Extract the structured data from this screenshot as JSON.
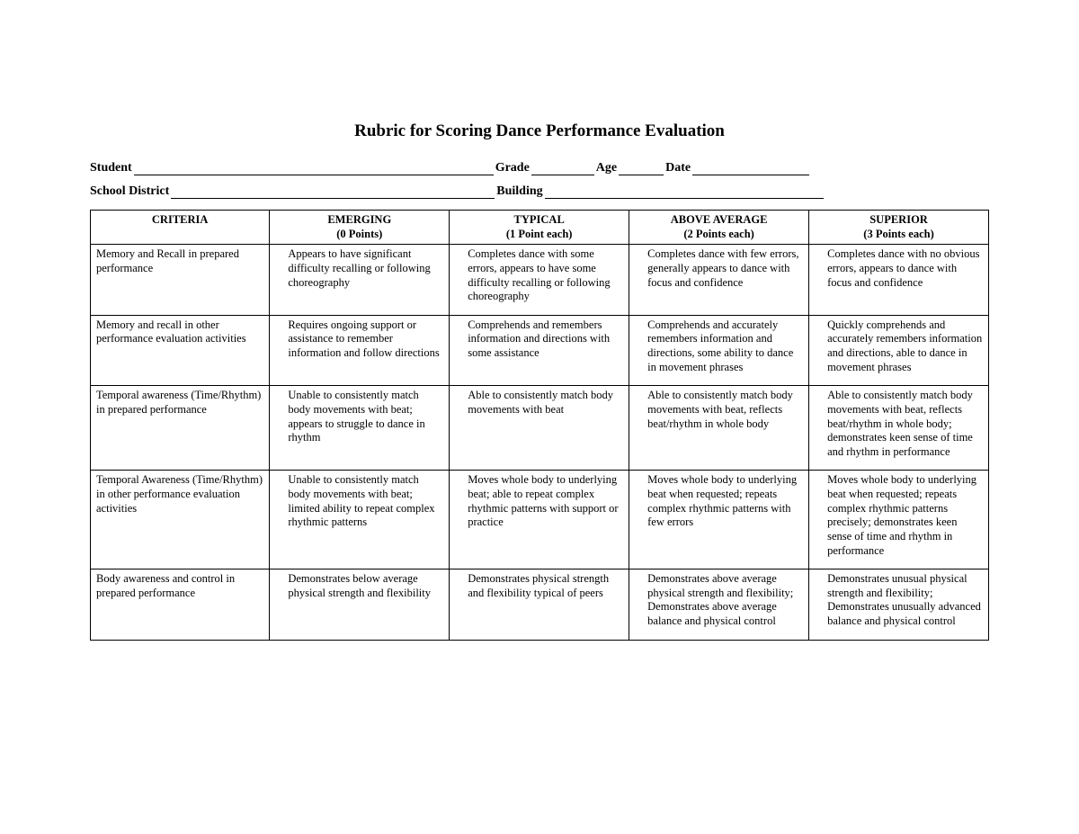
{
  "title": "Rubric for Scoring Dance Performance Evaluation",
  "fields": {
    "student": "Student",
    "grade": "Grade",
    "age": "Age",
    "date": "Date",
    "schoolDistrict": "School District",
    "building": "Building"
  },
  "table": {
    "headers": {
      "criteria": "CRITERIA",
      "emerging": {
        "label": "EMERGING",
        "points": "(0 Points)"
      },
      "typical": {
        "label": "TYPICAL",
        "points": "(1 Point each)"
      },
      "above": {
        "label": "ABOVE AVERAGE",
        "points": "(2 Points each)"
      },
      "superior": {
        "label": "SUPERIOR",
        "points": "(3 Points each)"
      }
    },
    "rows": [
      {
        "criteria": "Memory and Recall in prepared performance",
        "emerging": "Appears to have significant difficulty recalling or following choreography",
        "typical": "Completes dance with some errors, appears to have some difficulty recalling or following choreography",
        "above": "Completes dance with few errors, generally appears to dance with focus and confidence",
        "superior": "Completes dance with no obvious errors, appears to dance with focus and confidence"
      },
      {
        "criteria": "Memory and recall in other performance evaluation activities",
        "emerging": "Requires ongoing support or assistance to remember information and follow directions",
        "typical": "Comprehends and remembers information and directions with some assistance",
        "above": "Comprehends and accurately remembers information and directions, some ability to dance in movement phrases",
        "superior": "Quickly comprehends and accurately remembers information and directions, able to dance in movement phrases"
      },
      {
        "criteria": "Temporal awareness (Time/Rhythm) in prepared performance",
        "emerging": "Unable to consistently match body movements with beat; appears to struggle to dance in rhythm",
        "typical": "Able to consistently match body movements with beat",
        "above": "Able to consistently match body movements with beat, reflects beat/rhythm in whole body",
        "superior": "Able to consistently match body movements with beat, reflects beat/rhythm in whole body; demonstrates keen sense of time and rhythm in performance"
      },
      {
        "criteria": "Temporal Awareness (Time/Rhythm) in other performance evaluation activities",
        "emerging": "Unable to consistently match body movements with beat; limited ability to repeat complex rhythmic patterns",
        "typical": "Moves whole body to underlying beat; able to repeat complex rhythmic patterns with support or practice",
        "above": "Moves whole body to underlying beat when requested; repeats complex rhythmic patterns with few errors",
        "superior": "Moves whole body to underlying beat when requested; repeats complex rhythmic patterns precisely; demonstrates keen sense of time and rhythm in performance"
      },
      {
        "criteria": "Body awareness and control in prepared performance",
        "emerging": "Demonstrates below average physical strength and flexibility",
        "typical": "Demonstrates physical strength and flexibility typical of peers",
        "above": "Demonstrates above average physical strength and flexibility; Demonstrates above average balance and physical control",
        "superior": "Demonstrates unusual physical strength and flexibility; Demonstrates unusually advanced balance and physical control"
      }
    ]
  },
  "style": {
    "blanks": {
      "student": 400,
      "grade": 70,
      "age": 50,
      "date": 130,
      "schoolDistrict": 360,
      "building": 310
    }
  }
}
